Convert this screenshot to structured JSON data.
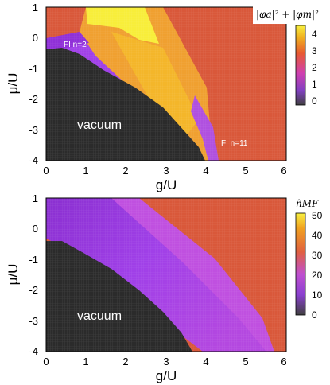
{
  "chart_data": [
    {
      "type": "heatmap",
      "title": "",
      "colorbar_label": "|φa|² + |φm|²",
      "colorbar_ticks": [
        "4",
        "3",
        "2",
        "1",
        "0"
      ],
      "xlabel": "g/U",
      "ylabel": "μ/U",
      "xlim": [
        0,
        6
      ],
      "ylim": [
        -4,
        1
      ],
      "x_ticks": [
        "0",
        "1",
        "2",
        "3",
        "4",
        "5",
        "6"
      ],
      "y_ticks": [
        "1",
        "0",
        "-1",
        "-2",
        "-3",
        "-4"
      ],
      "annotations": [
        "vacuum",
        "FI n=2",
        "FI n=11"
      ]
    },
    {
      "type": "heatmap",
      "title": "",
      "colorbar_label": "ñMF",
      "colorbar_ticks": [
        "50",
        "40",
        "30",
        "20",
        "10",
        "0"
      ],
      "xlabel": "g/U",
      "ylabel": "μ/U",
      "xlim": [
        0,
        6
      ],
      "ylim": [
        -4,
        1
      ],
      "x_ticks": [
        "0",
        "1",
        "2",
        "3",
        "4",
        "5",
        "6"
      ],
      "y_ticks": [
        "1",
        "0",
        "-1",
        "-2",
        "-3",
        "-4"
      ],
      "annotations": [
        "vacuum"
      ]
    }
  ],
  "colors": {
    "vacuum": "#2b2b2b",
    "orange": "#d9583a",
    "yellow": "#f6e632",
    "purple": "#9d3fe6",
    "violet": "#c050e0"
  }
}
